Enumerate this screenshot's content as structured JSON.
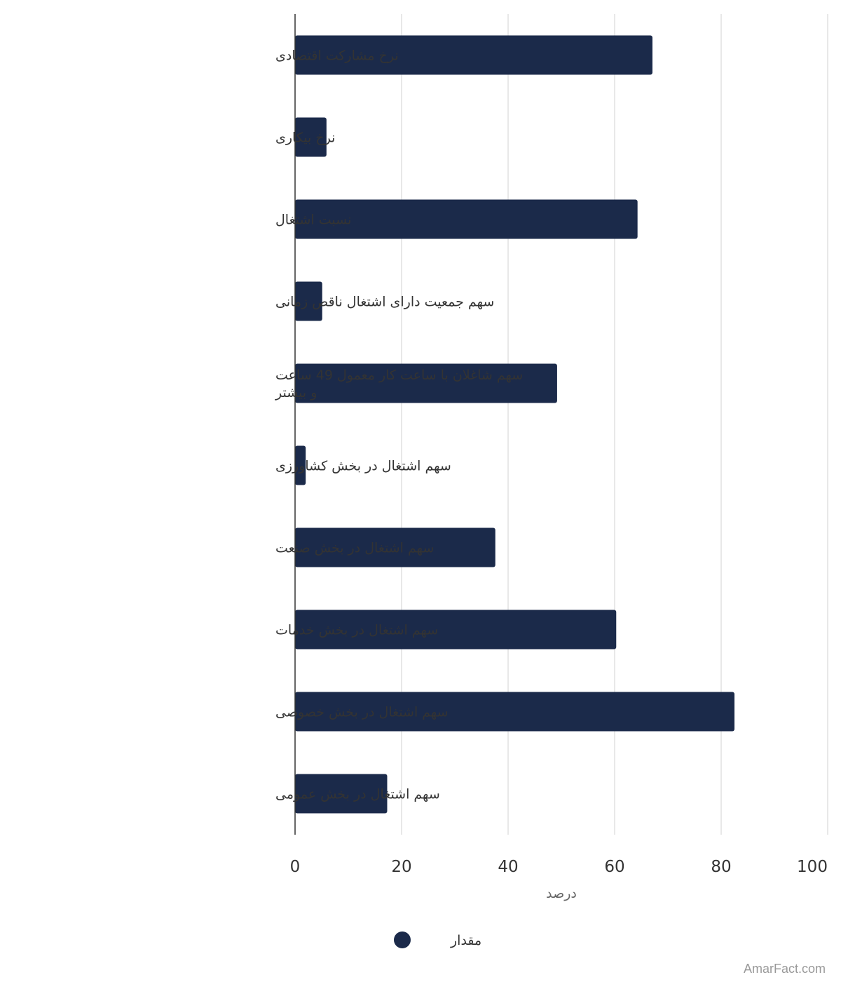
{
  "chart_data": {
    "type": "bar",
    "orientation": "horizontal",
    "categories": [
      "نرخ مشارکت اقتصادی",
      "نرخ بیکاری",
      "نسبت اشتغال",
      "سهم جمعیت دارای اشتغال ناقص زمانی",
      "سهم شاغلان با ساعت کار معمول 49 ساعت و بیشتر",
      "سهم اشتغال در بخش کشاورزی",
      "سهم اشتغال در بخش صنعت",
      "سهم اشتغال در بخش خدمات",
      "سهم اشتغال در بخش خصوصی",
      "سهم اشتغال در بخش عمومی"
    ],
    "category_lines": [
      [
        "نرخ مشارکت اقتصادی"
      ],
      [
        "نرخ بیکاری"
      ],
      [
        "نسبت اشتغال"
      ],
      [
        "سهم جمعیت دارای اشتغال ناقص زمانی"
      ],
      [
        "سهم شاغلان با ساعت کار معمول 49 ساعت",
        "و بیشتر"
      ],
      [
        "سهم اشتغال در بخش کشاورزی"
      ],
      [
        "سهم اشتغال در بخش صنعت"
      ],
      [
        "سهم اشتغال در بخش خدمات"
      ],
      [
        "سهم اشتغال در بخش خصوصی"
      ],
      [
        "سهم اشتغال در بخش عمومی"
      ]
    ],
    "series": [
      {
        "name": "مقدار",
        "values": [
          67.1,
          5.9,
          64.3,
          5.1,
          49.2,
          2.0,
          37.6,
          60.3,
          82.5,
          17.3
        ]
      }
    ],
    "xlabel": "درصد",
    "ylabel": "",
    "xlim": [
      0,
      100
    ],
    "x_ticks": [
      0,
      20,
      40,
      60,
      80,
      100
    ],
    "grid": true,
    "legend": "bottom-center",
    "bar_color": "#1b2a4a"
  },
  "watermark": "AmarFact.com"
}
